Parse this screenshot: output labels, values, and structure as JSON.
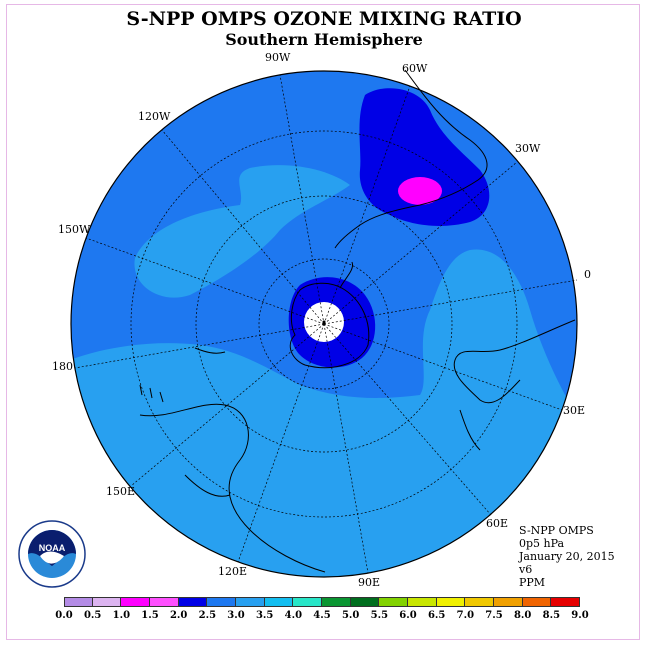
{
  "title": "S-NPP OMPS OZONE MIXING RATIO",
  "subtitle": "Southern Hemisphere",
  "longitude_labels": [
    "0",
    "30E",
    "60E",
    "90E",
    "120E",
    "150E",
    "180",
    "150W",
    "120W",
    "90W",
    "60W",
    "30W"
  ],
  "info": {
    "instrument": "S-NPP OMPS",
    "level": "0p5 hPa",
    "date": "January 20, 2015",
    "version": "v6",
    "units": "PPM"
  },
  "logo": {
    "text": "NOAA",
    "ring_text": "NATIONAL OCEANIC AND ATMOSPHERIC ADMINISTRATION · U.S. DEPARTMENT OF COMMERCE"
  },
  "colorbar": {
    "ticks": [
      "0.0",
      "0.5",
      "1.0",
      "1.5",
      "2.0",
      "2.5",
      "3.0",
      "3.5",
      "4.0",
      "4.5",
      "5.0",
      "5.5",
      "6.0",
      "6.5",
      "7.0",
      "7.5",
      "8.0",
      "8.5",
      "9.0"
    ],
    "colors": [
      "#b48ce6",
      "#dcb4f0",
      "#ff00ff",
      "#ff50ff",
      "#0000e6",
      "#1e78f0",
      "#28a0f0",
      "#14bef0",
      "#28e6c8",
      "#0a9632",
      "#006e1e",
      "#82d200",
      "#c8e600",
      "#f0f000",
      "#f0c800",
      "#f0a000",
      "#f06400",
      "#e60000",
      "#8c5a3c"
    ]
  },
  "colors": {
    "background_field": "#1e78f0",
    "high_field": "#28a0f0",
    "low_field": "#0000e6",
    "minimum": "#ff00ff",
    "frame": "#e6b8e6"
  }
}
